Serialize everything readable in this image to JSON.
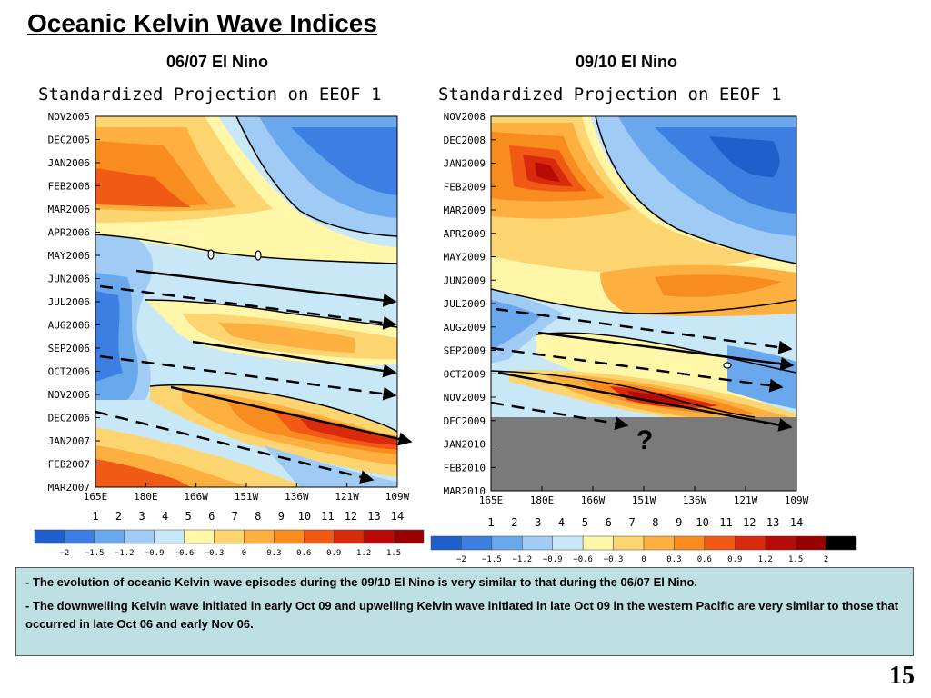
{
  "slide": {
    "title": "Oceanic Kelvin Wave Indices",
    "number": "15"
  },
  "panels": [
    {
      "subtitle": "06/07 El Nino",
      "plot_title": "Standardized Projection on EEOF 1",
      "months": [
        "NOV2005",
        "DEC2005",
        "JAN2006",
        "FEB2006",
        "MAR2006",
        "APR2006",
        "MAY2006",
        "JUN2006",
        "JUL2006",
        "AUG2006",
        "SEP2006",
        "OCT2006",
        "NOV2006",
        "DEC2006",
        "JAN2007",
        "FEB2007",
        "MAR2007"
      ],
      "lon_labels": [
        "165E",
        "180E",
        "166W",
        "151W",
        "136W",
        "121W",
        "109W"
      ],
      "index_labels": [
        "1",
        "2",
        "3",
        "4",
        "5",
        "6",
        "7",
        "8",
        "9",
        "10",
        "11",
        "12",
        "13",
        "14"
      ],
      "colorbar_labels": [
        "−2",
        "−1.5",
        "−1.2",
        "−0.9",
        "−0.6",
        "−0.3",
        "0",
        "0.3",
        "0.6",
        "0.9",
        "1.2",
        "1.5"
      ]
    },
    {
      "subtitle": "09/10 El Nino",
      "plot_title": "Standardized Projection on EEOF 1",
      "months": [
        "NOV2008",
        "DEC2008",
        "JAN2009",
        "FEB2009",
        "MAR2009",
        "APR2009",
        "MAY2009",
        "JUN2009",
        "JUL2009",
        "AUG2009",
        "SEP2009",
        "OCT2009",
        "NOV2009",
        "DEC2009",
        "JAN2010",
        "FEB2010",
        "MAR2010"
      ],
      "lon_labels": [
        "165E",
        "180E",
        "166W",
        "151W",
        "136W",
        "121W",
        "109W"
      ],
      "index_labels": [
        "1",
        "2",
        "3",
        "4",
        "5",
        "6",
        "7",
        "8",
        "9",
        "10",
        "11",
        "12",
        "13",
        "14"
      ],
      "colorbar_labels": [
        "−2",
        "−1.5",
        "−1.2",
        "−0.9",
        "−0.6",
        "−0.3",
        "0",
        "0.3",
        "0.6",
        "0.9",
        "1.2",
        "1.5",
        "2"
      ],
      "annotation": "?"
    }
  ],
  "palette": [
    "#1f5fcc",
    "#3d7fe0",
    "#6aa8ee",
    "#9fcbf5",
    "#c8e8f8",
    "#fff6a8",
    "#fdd570",
    "#fdb040",
    "#f98c1e",
    "#f05a14",
    "#d92a0e",
    "#b80a06",
    "#980000"
  ],
  "caption": {
    "bullet1": "The evolution of oceanic Kelvin wave episodes during the 09/10 El Nino is very similar to that during the 06/07 El Nino.",
    "bullet2": "The downwelling Kelvin wave initiated in early Oct  09 and upwelling Kelvin wave initiated in late Oct  09 in the western Pacific are very similar to those that  occurred in late Oct 06 and early Nov 06."
  }
}
